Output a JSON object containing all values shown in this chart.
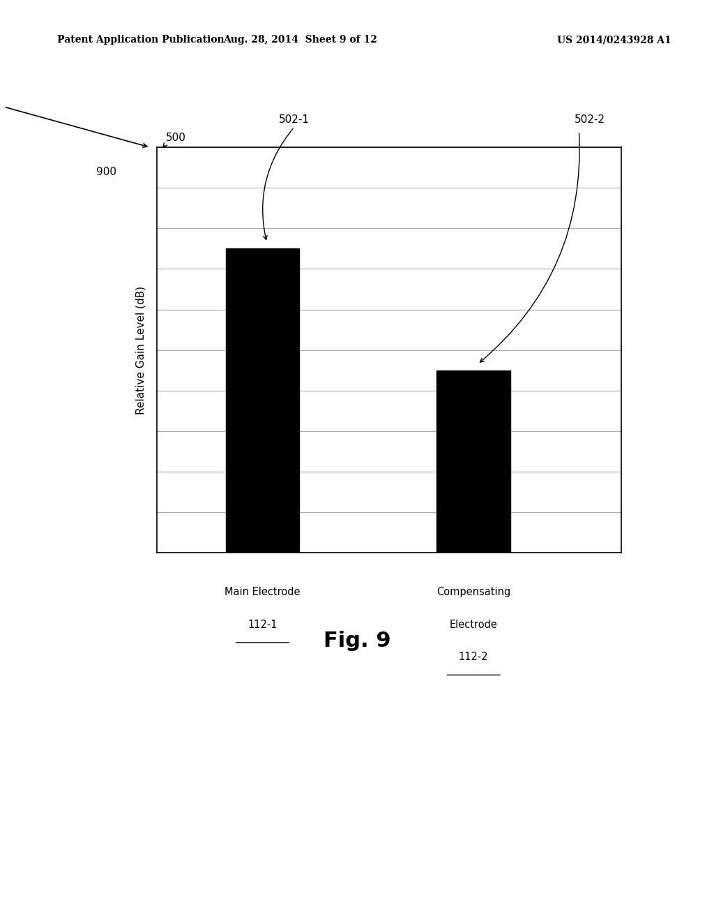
{
  "bar_values": [
    7.5,
    4.5
  ],
  "bar_color": "#000000",
  "bar_width": 0.35,
  "bar_positions": [
    1,
    2
  ],
  "ylabel": "Relative Gain Level (dB)",
  "ylim": [
    0,
    10
  ],
  "yticks": [
    0,
    1,
    2,
    3,
    4,
    5,
    6,
    7,
    8,
    9,
    10
  ],
  "grid_color": "#aaaaaa",
  "chart_bg": "#ffffff",
  "page_bg": "#ffffff",
  "border_color": "#000000",
  "label_500": "500",
  "label_5021": "502-1",
  "label_5022": "502-2",
  "label_900": "900",
  "fig_label": "Fig. 9",
  "header_left": "Patent Application Publication",
  "header_mid": "Aug. 28, 2014  Sheet 9 of 12",
  "header_right": "US 2014/0243928 A1",
  "bar1_line1": "Main Electrode",
  "bar1_line2": "112-1",
  "bar2_line1": "Compensating",
  "bar2_line2": "Electrode",
  "bar2_line3": "112-2"
}
